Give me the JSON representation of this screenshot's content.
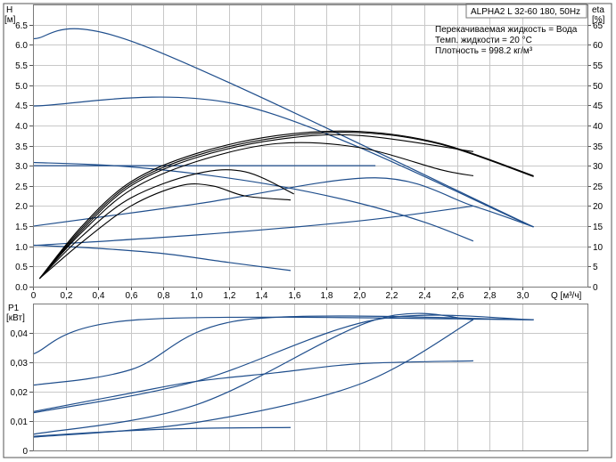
{
  "title": "ALPHA2 L 32-60 180, 50Hz",
  "info": [
    "Перекачиваемая жидкость = Вода",
    "Темп. жидкости = 20 °C",
    "Плотность = 998.2 кг/м³"
  ],
  "colors": {
    "blue": "#1f4e8c",
    "black": "#000000",
    "grid": "#c8c8c8"
  },
  "chart_data": [
    {
      "type": "line",
      "title": "ALPHA2 L 32-60 180, 50Hz",
      "xlabel": "Q [м³/ч]",
      "ylabel": "H\n[м]",
      "y2label": "eta\n[%]",
      "xlim": [
        0,
        3.4
      ],
      "ylim": [
        0,
        7.0
      ],
      "y2lim": [
        0,
        70
      ],
      "x_ticks": [
        "0",
        "0,2",
        "0,4",
        "0,6",
        "0,8",
        "1,0",
        "1,2",
        "1,4",
        "1,6",
        "1,8",
        "2,0",
        "2,2",
        "2,4",
        "2,6",
        "2,8",
        "3,0"
      ],
      "y_ticks": [
        "0.0",
        "0.5",
        "1.0",
        "1.5",
        "2.0",
        "2.5",
        "3.0",
        "3.5",
        "4.0",
        "4.5",
        "5.0",
        "5.5",
        "6.0",
        "6.5"
      ],
      "y2_ticks": [
        "0",
        "5",
        "10",
        "15",
        "20",
        "25",
        "30",
        "35",
        "40",
        "45",
        "50",
        "55",
        "60",
        "65"
      ],
      "grid": true,
      "head_curves": [
        {
          "color": "blue",
          "x": [
            0,
            0.65,
            3.07
          ],
          "y": [
            6.15,
            6.02,
            1.48
          ]
        },
        {
          "color": "blue",
          "x": [
            0,
            1.3,
            3.07
          ],
          "y": [
            4.48,
            4.48,
            1.48
          ]
        },
        {
          "color": "blue",
          "x": [
            0,
            2.1
          ],
          "y": [
            3.0,
            3.0
          ]
        },
        {
          "color": "blue",
          "x": [
            0,
            0.5,
            1.0,
            1.5,
            2.0,
            2.4,
            2.7
          ],
          "y": [
            3.08,
            3.0,
            2.8,
            2.5,
            2.07,
            1.6,
            1.13
          ]
        },
        {
          "color": "blue",
          "x": [
            0,
            1.0,
            2.1,
            2.7,
            3.07
          ],
          "y": [
            1.5,
            2.05,
            2.7,
            2.0,
            1.48
          ]
        },
        {
          "color": "blue",
          "x": [
            0,
            1.0,
            2.0,
            2.7
          ],
          "y": [
            1.02,
            1.28,
            1.63,
            2.0
          ]
        },
        {
          "color": "blue",
          "x": [
            0,
            0.4,
            0.8,
            1.2,
            1.58
          ],
          "y": [
            1.03,
            0.95,
            0.82,
            0.6,
            0.4
          ]
        }
      ],
      "eta_curves": [
        {
          "color": "black",
          "x": [
            0.04,
            0.3,
            0.6,
            1.0,
            1.5,
            2.0,
            2.5,
            3.07
          ],
          "y": [
            2,
            15,
            26,
            33,
            37.5,
            38.5,
            35.5,
            27.5
          ]
        },
        {
          "color": "black",
          "x": [
            0.04,
            0.3,
            0.6,
            1.0,
            1.5,
            2.0,
            2.5,
            3.07
          ],
          "y": [
            2,
            14.5,
            25.5,
            32.5,
            37,
            38.2,
            35.3,
            27.3
          ]
        },
        {
          "color": "black",
          "x": [
            0.04,
            0.3,
            0.6,
            1.0,
            1.5,
            2.0,
            2.7
          ],
          "y": [
            2,
            14,
            25,
            32,
            36.5,
            37.5,
            33.5
          ]
        },
        {
          "color": "black",
          "x": [
            0.04,
            0.3,
            0.6,
            1.0,
            1.5,
            2.0,
            2.5,
            2.7
          ],
          "y": [
            2,
            13.5,
            24,
            31,
            35.5,
            34.5,
            29,
            27.5
          ]
        },
        {
          "color": "black",
          "x": [
            0.04,
            0.3,
            0.6,
            1.0,
            1.3,
            1.6
          ],
          "y": [
            2,
            12.5,
            22,
            28,
            28.5,
            23
          ]
        },
        {
          "color": "black",
          "x": [
            0.04,
            0.3,
            0.6,
            0.9,
            1.1,
            1.3,
            1.58
          ],
          "y": [
            2,
            11,
            20,
            25,
            25,
            22.5,
            21.5
          ]
        }
      ]
    },
    {
      "type": "line",
      "xlabel": "",
      "ylabel": "P1\n[кВт]",
      "xlim": [
        0,
        3.4
      ],
      "ylim": [
        0,
        0.05
      ],
      "y_ticks": [
        "0",
        "0,01",
        "0,02",
        "0,03",
        "0,04"
      ],
      "grid": true,
      "power_curves": [
        {
          "color": "blue",
          "x": [
            0,
            0.65,
            3.07
          ],
          "y": [
            0.0328,
            0.0445,
            0.0445
          ]
        },
        {
          "color": "blue",
          "x": [
            0,
            0.6,
            1.3,
            3.07
          ],
          "y": [
            0.0222,
            0.0275,
            0.0445,
            0.0445
          ]
        },
        {
          "color": "blue",
          "x": [
            0,
            1.0,
            2.1,
            3.07
          ],
          "y": [
            0.0128,
            0.0235,
            0.0445,
            0.0445
          ]
        },
        {
          "color": "blue",
          "x": [
            0,
            1.0,
            2.1,
            2.7
          ],
          "y": [
            0.0055,
            0.0155,
            0.0445,
            0.0445
          ]
        },
        {
          "color": "blue",
          "x": [
            0,
            1.0,
            2.0,
            2.7
          ],
          "y": [
            0.0045,
            0.0095,
            0.0225,
            0.0445
          ]
        },
        {
          "color": "blue",
          "x": [
            0,
            0.5,
            1.0,
            1.58
          ],
          "y": [
            0.0048,
            0.0065,
            0.0075,
            0.0078
          ]
        },
        {
          "color": "blue",
          "x": [
            0,
            0.6,
            1.0,
            1.5,
            2.0,
            2.7
          ],
          "y": [
            0.0132,
            0.0195,
            0.0235,
            0.0265,
            0.0295,
            0.0305
          ]
        }
      ]
    }
  ]
}
